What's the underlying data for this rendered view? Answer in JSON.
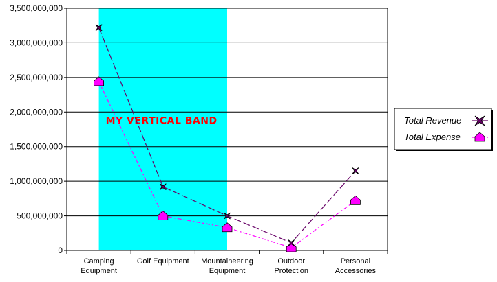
{
  "chart_data": {
    "type": "line",
    "categories": [
      [
        "Camping",
        "Equipment"
      ],
      [
        "Golf Equipment"
      ],
      [
        "Mountaineering",
        "Equipment"
      ],
      [
        "Outdoor",
        "Protection"
      ],
      [
        "Personal",
        "Accessories"
      ]
    ],
    "series": [
      {
        "name": "Total Revenue",
        "values": [
          3220000000,
          920000000,
          500000000,
          110000000,
          1150000000
        ],
        "color": "#660066",
        "marker": "x-star",
        "line_style": "long-dash"
      },
      {
        "name": "Total Expense",
        "values": [
          2440000000,
          500000000,
          330000000,
          40000000,
          720000000
        ],
        "color": "#ff00ff",
        "marker": "house",
        "line_style": "dash-dot"
      }
    ],
    "ylim": [
      0,
      3500000000
    ],
    "yticks": [
      0,
      500000000,
      1000000000,
      1500000000,
      2000000000,
      2500000000,
      3000000000,
      3500000000
    ],
    "ytick_labels": [
      "0",
      "500,000,000",
      "1,000,000,000",
      "1,500,000,000",
      "2,000,000,000",
      "2,500,000,000",
      "3,000,000,000",
      "3,500,000,000"
    ],
    "grid": "horizontal",
    "band": {
      "label": "MY VERTICAL BAND",
      "from_category": 0,
      "to_category": 2,
      "color": "#00ffff"
    },
    "legend": {
      "placement": "right"
    }
  }
}
